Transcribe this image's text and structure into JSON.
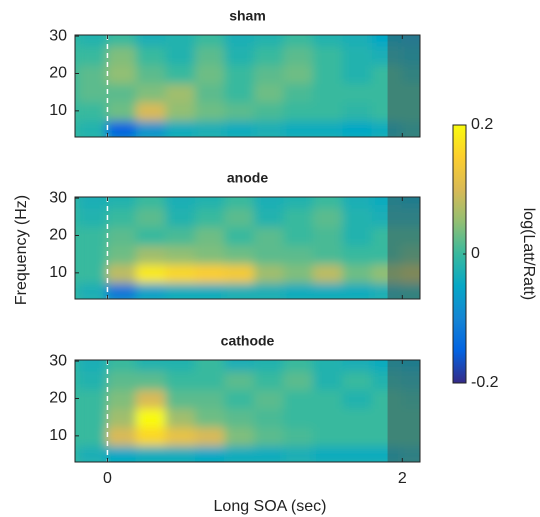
{
  "chart_data": {
    "type": "heatmap",
    "xlabel": "Long SOA (sec)",
    "ylabel": "Frequency (Hz)",
    "xlim": [
      -0.22,
      2.12
    ],
    "ylim": [
      3,
      30.3
    ],
    "xticks": [
      0,
      2
    ],
    "yticks": [
      10,
      20,
      30
    ],
    "x": [
      -0.1,
      0.1,
      0.3,
      0.5,
      0.7,
      0.9,
      1.1,
      1.3,
      1.5,
      1.7,
      1.9,
      2.1
    ],
    "y": [
      5,
      10,
      15,
      20,
      25,
      30
    ],
    "marker_x": 0,
    "shade_x": [
      1.9,
      2.12
    ],
    "clim": [
      -0.2,
      0.2
    ],
    "colorbar_ticks": [
      0.2,
      0,
      -0.2
    ],
    "colorbar_label": "log(Latt/Ratt)",
    "colormap": [
      "#352a87",
      "#0363e1",
      "#1485d4",
      "#06a7c6",
      "#38b99e",
      "#92bf73",
      "#d9ba56",
      "#fcce2e",
      "#f9fb0e"
    ],
    "panels": [
      {
        "title": "sham",
        "z": [
          [
            -0.02,
            -0.15,
            -0.08,
            -0.04,
            -0.03,
            -0.04,
            -0.03,
            -0.04,
            -0.04,
            -0.05,
            -0.04,
            -0.02
          ],
          [
            0.0,
            0.03,
            0.1,
            0.05,
            0.03,
            0.02,
            0.01,
            0.0,
            0.0,
            -0.01,
            0.0,
            0.0
          ],
          [
            0.02,
            0.02,
            0.04,
            0.06,
            0.02,
            0.0,
            0.03,
            0.01,
            0.0,
            0.0,
            0.0,
            0.0
          ],
          [
            0.02,
            0.05,
            0.02,
            0.0,
            0.03,
            0.0,
            0.02,
            0.03,
            0.0,
            -0.02,
            0.0,
            -0.02
          ],
          [
            0.0,
            0.04,
            0.0,
            -0.02,
            0.02,
            -0.02,
            0.0,
            0.02,
            0.0,
            -0.02,
            -0.03,
            -0.04
          ],
          [
            -0.02,
            0.0,
            -0.03,
            -0.02,
            0.0,
            -0.03,
            -0.02,
            0.0,
            -0.02,
            -0.03,
            -0.05,
            -0.06
          ]
        ]
      },
      {
        "title": "anode",
        "z": [
          [
            -0.03,
            -0.12,
            -0.06,
            -0.04,
            -0.04,
            -0.03,
            -0.03,
            -0.04,
            -0.04,
            -0.04,
            -0.03,
            -0.02
          ],
          [
            0.0,
            0.08,
            0.18,
            0.16,
            0.15,
            0.14,
            0.06,
            0.04,
            0.08,
            0.03,
            0.05,
            0.07
          ],
          [
            0.0,
            0.03,
            0.06,
            0.05,
            0.04,
            0.03,
            0.02,
            0.02,
            0.01,
            0.0,
            0.0,
            0.02
          ],
          [
            0.0,
            0.02,
            0.0,
            0.01,
            0.03,
            0.0,
            0.02,
            0.0,
            0.01,
            -0.02,
            0.0,
            0.0
          ],
          [
            -0.02,
            0.0,
            0.02,
            -0.02,
            0.0,
            0.02,
            -0.02,
            0.0,
            0.02,
            -0.02,
            -0.03,
            -0.03
          ],
          [
            -0.03,
            -0.02,
            0.0,
            -0.03,
            -0.02,
            0.0,
            -0.03,
            -0.02,
            0.0,
            -0.03,
            -0.04,
            -0.05
          ]
        ]
      },
      {
        "title": "cathode",
        "z": [
          [
            -0.03,
            -0.05,
            -0.04,
            -0.04,
            -0.05,
            -0.04,
            -0.04,
            -0.03,
            -0.04,
            -0.04,
            -0.04,
            -0.03
          ],
          [
            0.0,
            0.1,
            0.16,
            0.12,
            0.1,
            0.04,
            0.02,
            0.01,
            0.0,
            0.0,
            0.0,
            0.0
          ],
          [
            0.0,
            0.06,
            0.2,
            0.06,
            0.03,
            0.02,
            0.01,
            0.0,
            0.0,
            0.0,
            0.0,
            0.0
          ],
          [
            0.0,
            0.04,
            0.1,
            0.02,
            0.02,
            0.0,
            0.02,
            0.0,
            0.0,
            -0.02,
            0.0,
            -0.01
          ],
          [
            -0.02,
            0.02,
            0.02,
            0.0,
            0.0,
            0.02,
            0.0,
            0.02,
            -0.02,
            0.0,
            -0.02,
            -0.03
          ],
          [
            -0.03,
            0.0,
            -0.02,
            -0.02,
            0.0,
            -0.03,
            -0.02,
            0.0,
            -0.02,
            -0.03,
            -0.04,
            -0.05
          ]
        ]
      }
    ]
  }
}
